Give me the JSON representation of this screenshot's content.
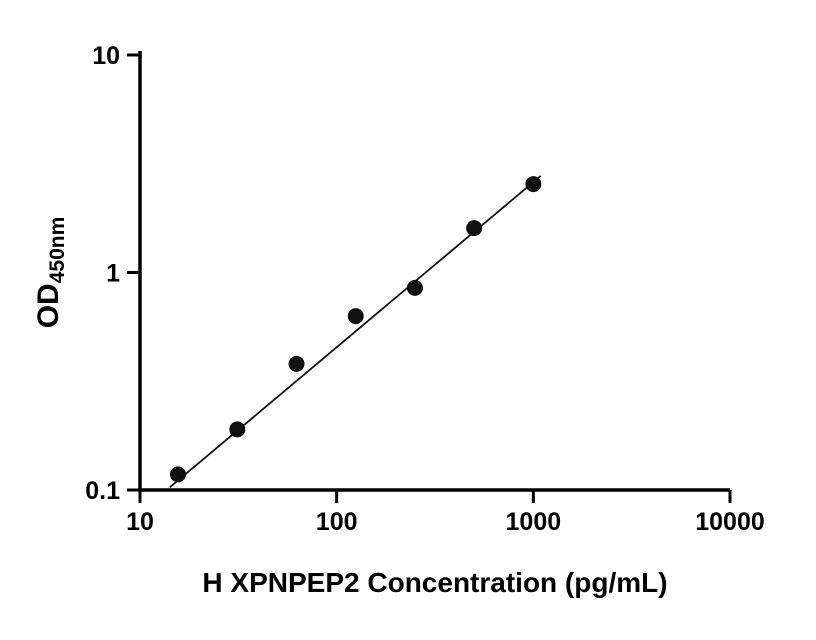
{
  "figure": {
    "background_color": "#ffffff"
  },
  "chart_data": {
    "type": "scatter",
    "title": "",
    "xlabel": "H XPNPEP2 Concentration (pg/mL)",
    "ylabel": "OD",
    "ylabel_subscript": "450nm",
    "x_scale": "log",
    "y_scale": "log",
    "xlim": [
      10,
      10000
    ],
    "ylim": [
      0.1,
      10
    ],
    "x_ticks": [
      10,
      100,
      1000,
      10000
    ],
    "x_tick_labels": [
      "10",
      "100",
      "1000",
      "10000"
    ],
    "y_ticks": [
      0.1,
      1,
      10
    ],
    "y_tick_labels": [
      "0.1",
      "1",
      "10"
    ],
    "grid": false,
    "legend_position": "none",
    "points": [
      {
        "x": 15.6,
        "y": 0.118
      },
      {
        "x": 31.25,
        "y": 0.19
      },
      {
        "x": 62.5,
        "y": 0.38
      },
      {
        "x": 125,
        "y": 0.63
      },
      {
        "x": 250,
        "y": 0.85
      },
      {
        "x": 500,
        "y": 1.6
      },
      {
        "x": 1000,
        "y": 2.55
      }
    ],
    "trendline": {
      "x1": 14.2,
      "y1": 0.103,
      "x2": 1090,
      "y2": 2.78
    },
    "marker": {
      "shape": "circle",
      "color": "#111111",
      "radius": 8
    },
    "line_color": "#111111",
    "axis_color": "#000000"
  }
}
